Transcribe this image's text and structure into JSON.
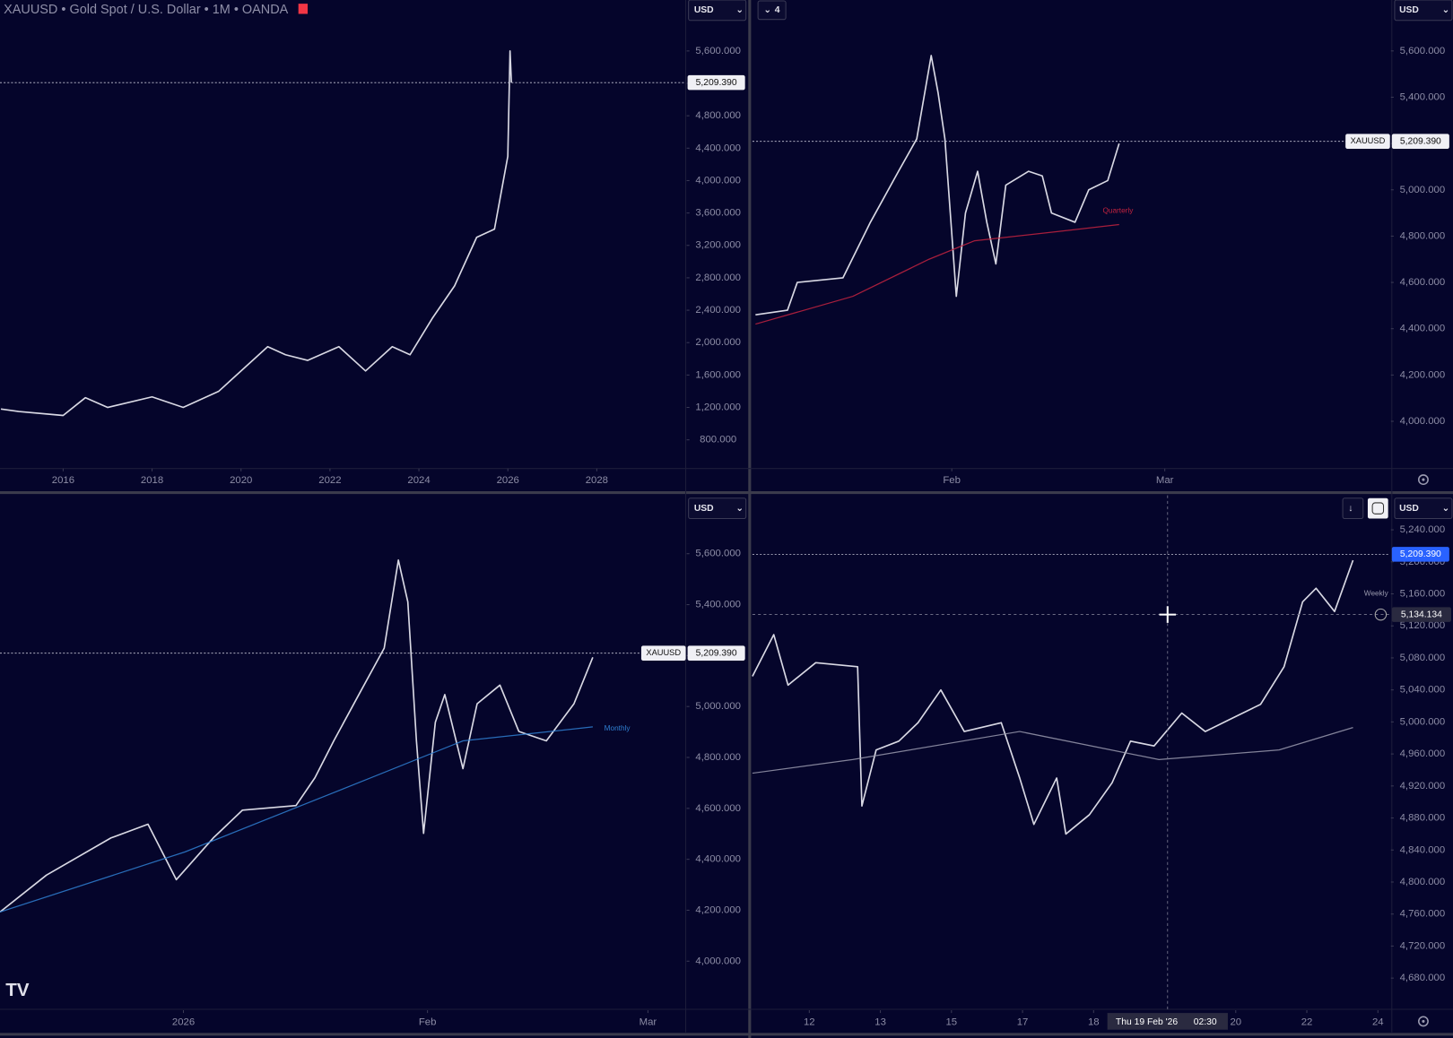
{
  "header": {
    "title": "XAUUSD • Gold Spot / U.S. Dollar • 1M • OANDA",
    "layout_count": "4"
  },
  "currency": [
    "USD",
    "USD",
    "USD",
    "USD"
  ],
  "chart_data": [
    {
      "type": "line",
      "xlim": [
        2014.58,
        2030
      ],
      "xticks": [
        2016,
        2018,
        2020,
        2022,
        2024,
        2026,
        2028
      ],
      "ylim": [
        457,
        6229
      ],
      "yticks": [
        {
          "value": 800,
          "label": "800.000"
        },
        {
          "value": 1200,
          "label": "1,200.000"
        },
        {
          "value": 1600,
          "label": "1,600.000"
        },
        {
          "value": 2000,
          "label": "2,000.000"
        },
        {
          "value": 2400,
          "label": "2,400.000"
        },
        {
          "value": 2800,
          "label": "2,800.000"
        },
        {
          "value": 3200,
          "label": "3,200.000"
        },
        {
          "value": 3600,
          "label": "3,600.000"
        },
        {
          "value": 4000,
          "label": "4,000.000"
        },
        {
          "value": 4400,
          "label": "4,400.000"
        },
        {
          "value": 4800,
          "label": "4,800.000"
        },
        {
          "value": 5200,
          "label": "5,200.000"
        },
        {
          "value": 5600,
          "label": "5,600.000"
        }
      ],
      "series": [
        {
          "color": "#d9d9e4",
          "x": [
            2014.6,
            2015,
            2016,
            2016.5,
            2017,
            2018,
            2018.7,
            2019.5,
            2020.6,
            2021,
            2021.5,
            2022.2,
            2022.8,
            2023.4,
            2023.8,
            2024.3,
            2024.8,
            2025.3,
            2025.7,
            2025.9,
            2026.0,
            2026.05,
            2026.08
          ],
          "values": [
            1180,
            1150,
            1100,
            1320,
            1200,
            1330,
            1200,
            1400,
            1950,
            1850,
            1780,
            1950,
            1650,
            1950,
            1850,
            2300,
            2700,
            3300,
            3400,
            4000,
            4300,
            5600,
            5209
          ]
        }
      ],
      "last_price": {
        "value": 5209.39,
        "label": "5,209.390"
      }
    },
    {
      "type": "line",
      "xlim": [
        4.8,
        88.6
      ],
      "xticks": [
        {
          "value": 31,
          "label": "Feb"
        },
        {
          "value": 59,
          "label": "Mar"
        }
      ],
      "ylim": [
        3800,
        5820
      ],
      "yticks": [
        {
          "value": 4000,
          "label": "4,000.000"
        },
        {
          "value": 4200,
          "label": "4,200.000"
        },
        {
          "value": 4400,
          "label": "4,400.000"
        },
        {
          "value": 4600,
          "label": "4,600.000"
        },
        {
          "value": 4800,
          "label": "4,800.000"
        },
        {
          "value": 5000,
          "label": "5,000.000"
        },
        {
          "value": 5200,
          "label": "5,200.000"
        },
        {
          "value": 5400,
          "label": "5,400.000"
        },
        {
          "value": 5600,
          "label": "5,600.000"
        }
      ],
      "series": [
        {
          "color": "#d9d9e4",
          "x": [
            5.2,
            9.4,
            10.7,
            16.7,
            20.3,
            24,
            26.4,
            28.3,
            29.2,
            30.1,
            30.8,
            31.6,
            32.8,
            34.4,
            35.6,
            36.8,
            38.1,
            41.1,
            42.9,
            44.1,
            47.2,
            49,
            51.5,
            53
          ],
          "values": [
            4460,
            4480,
            4600,
            4620,
            4860,
            5080,
            5220,
            5580,
            5420,
            5220,
            4900,
            4540,
            4900,
            5080,
            4860,
            4680,
            5020,
            5080,
            5060,
            4900,
            4860,
            5000,
            5040,
            5200
          ]
        },
        {
          "color": "#c4233f",
          "x": [
            5.2,
            18,
            28,
            34,
            45,
            53
          ],
          "values": [
            4420,
            4540,
            4700,
            4780,
            4820,
            4850
          ]
        }
      ],
      "annotations": [
        "Quarterly"
      ],
      "last_price": {
        "value": 5209.39,
        "label": "5,209.390",
        "symbol": "XAUUSD"
      }
    },
    {
      "type": "line",
      "xlim": [
        -23.3,
        63.8
      ],
      "xticks": [
        {
          "value": 0,
          "label": "2026"
        },
        {
          "value": 31,
          "label": "Feb"
        },
        {
          "value": 59,
          "label": "Mar"
        }
      ],
      "ylim": [
        3811,
        5829
      ],
      "yticks": [
        {
          "value": 4000,
          "label": "4,000.000"
        },
        {
          "value": 4200,
          "label": "4,200.000"
        },
        {
          "value": 4400,
          "label": "4,400.000"
        },
        {
          "value": 4600,
          "label": "4,600.000"
        },
        {
          "value": 4800,
          "label": "4,800.000"
        },
        {
          "value": 5000,
          "label": "5,000.000"
        },
        {
          "value": 5200,
          "label": "5,200.000"
        },
        {
          "value": 5400,
          "label": "5,400.000"
        },
        {
          "value": 5600,
          "label": "5,600.000"
        }
      ],
      "series": [
        {
          "color": "#d9d9e4",
          "x": [
            -23.3,
            -17.4,
            -9.2,
            -4.5,
            -0.9,
            3.8,
            7.5,
            14.3,
            16.7,
            19.1,
            22.6,
            25.5,
            27.3,
            28.5,
            29.6,
            30.5,
            32,
            33.2,
            35.5,
            37.3,
            40.2,
            42.6,
            46.1,
            49.6,
            52
          ],
          "values": [
            4193,
            4338,
            4484,
            4538,
            4320,
            4484,
            4593,
            4611,
            4720,
            4865,
            5065,
            5229,
            5575,
            5411,
            4865,
            4502,
            4938,
            5047,
            4756,
            5011,
            5084,
            4902,
            4865,
            5011,
            5193
          ]
        },
        {
          "color": "#2f7fd1",
          "x": [
            -23.3,
            0.2,
            23.8,
            35.5,
            52
          ],
          "values": [
            4193,
            4429,
            4720,
            4865,
            4920
          ]
        }
      ],
      "annotations": [
        "Monthly"
      ],
      "last_price": {
        "value": 5209.39,
        "label": "5,209.390",
        "symbol": "XAUUSD"
      }
    },
    {
      "type": "line",
      "xlim": [
        -0.8,
        8.17
      ],
      "xticks": [
        {
          "value": 0,
          "label": "12"
        },
        {
          "value": 1,
          "label": "13"
        },
        {
          "value": 2,
          "label": "15"
        },
        {
          "value": 3,
          "label": "17"
        },
        {
          "value": 4,
          "label": "18"
        },
        {
          "value": 6,
          "label": "20"
        },
        {
          "value": 7,
          "label": "22"
        },
        {
          "value": 8,
          "label": "24"
        }
      ],
      "ylim": [
        4641,
        5283
      ],
      "yticks": [
        {
          "value": 4680,
          "label": "4,680.000"
        },
        {
          "value": 4720,
          "label": "4,720.000"
        },
        {
          "value": 4760,
          "label": "4,760.000"
        },
        {
          "value": 4800,
          "label": "4,800.000"
        },
        {
          "value": 4840,
          "label": "4,840.000"
        },
        {
          "value": 4880,
          "label": "4,880.000"
        },
        {
          "value": 4920,
          "label": "4,920.000"
        },
        {
          "value": 4960,
          "label": "4,960.000"
        },
        {
          "value": 5000,
          "label": "5,000.000"
        },
        {
          "value": 5040,
          "label": "5,040.000"
        },
        {
          "value": 5080,
          "label": "5,080.000"
        },
        {
          "value": 5120,
          "label": "5,120.000"
        },
        {
          "value": 5160,
          "label": "5,160.000"
        },
        {
          "value": 5200,
          "label": "5,200.000"
        },
        {
          "value": 5240,
          "label": "5,240.000"
        }
      ],
      "series": [
        {
          "color": "#d9d9e4",
          "x": [
            -0.8,
            -0.5,
            -0.3,
            0.09,
            0.68,
            0.74,
            0.94,
            1.26,
            1.53,
            1.85,
            2.18,
            2.7,
            2.96,
            3.16,
            3.48,
            3.61,
            3.94,
            4.26,
            4.52,
            4.85,
            5.24,
            5.57,
            5.96,
            6.35,
            6.68,
            6.94,
            7.13,
            7.39,
            7.65
          ],
          "values": [
            5057,
            5109,
            5046,
            5074,
            5069,
            4895,
            4965,
            4976,
            4999,
            5040,
            4988,
            4999,
            4930,
            4872,
            4930,
            4860,
            4884,
            4924,
            4976,
            4970,
            5011,
            4988,
            5005,
            5022,
            5069,
            5150,
            5167,
            5138,
            5202
          ]
        },
        {
          "color": "#9a9aae",
          "x": [
            -0.8,
            0.61,
            2.96,
            4.92,
            6.61,
            7.65
          ],
          "values": [
            4936,
            4953,
            4988,
            4953,
            4965,
            4993
          ]
        }
      ],
      "annotations": [
        "Weekly"
      ],
      "last_price": {
        "value": 5209.39,
        "label": "5,209.390"
      },
      "crosshair": {
        "date": "Thu 19 Feb '26",
        "time": "02:30",
        "value": 5134.134,
        "label": "5,134.134"
      }
    }
  ]
}
